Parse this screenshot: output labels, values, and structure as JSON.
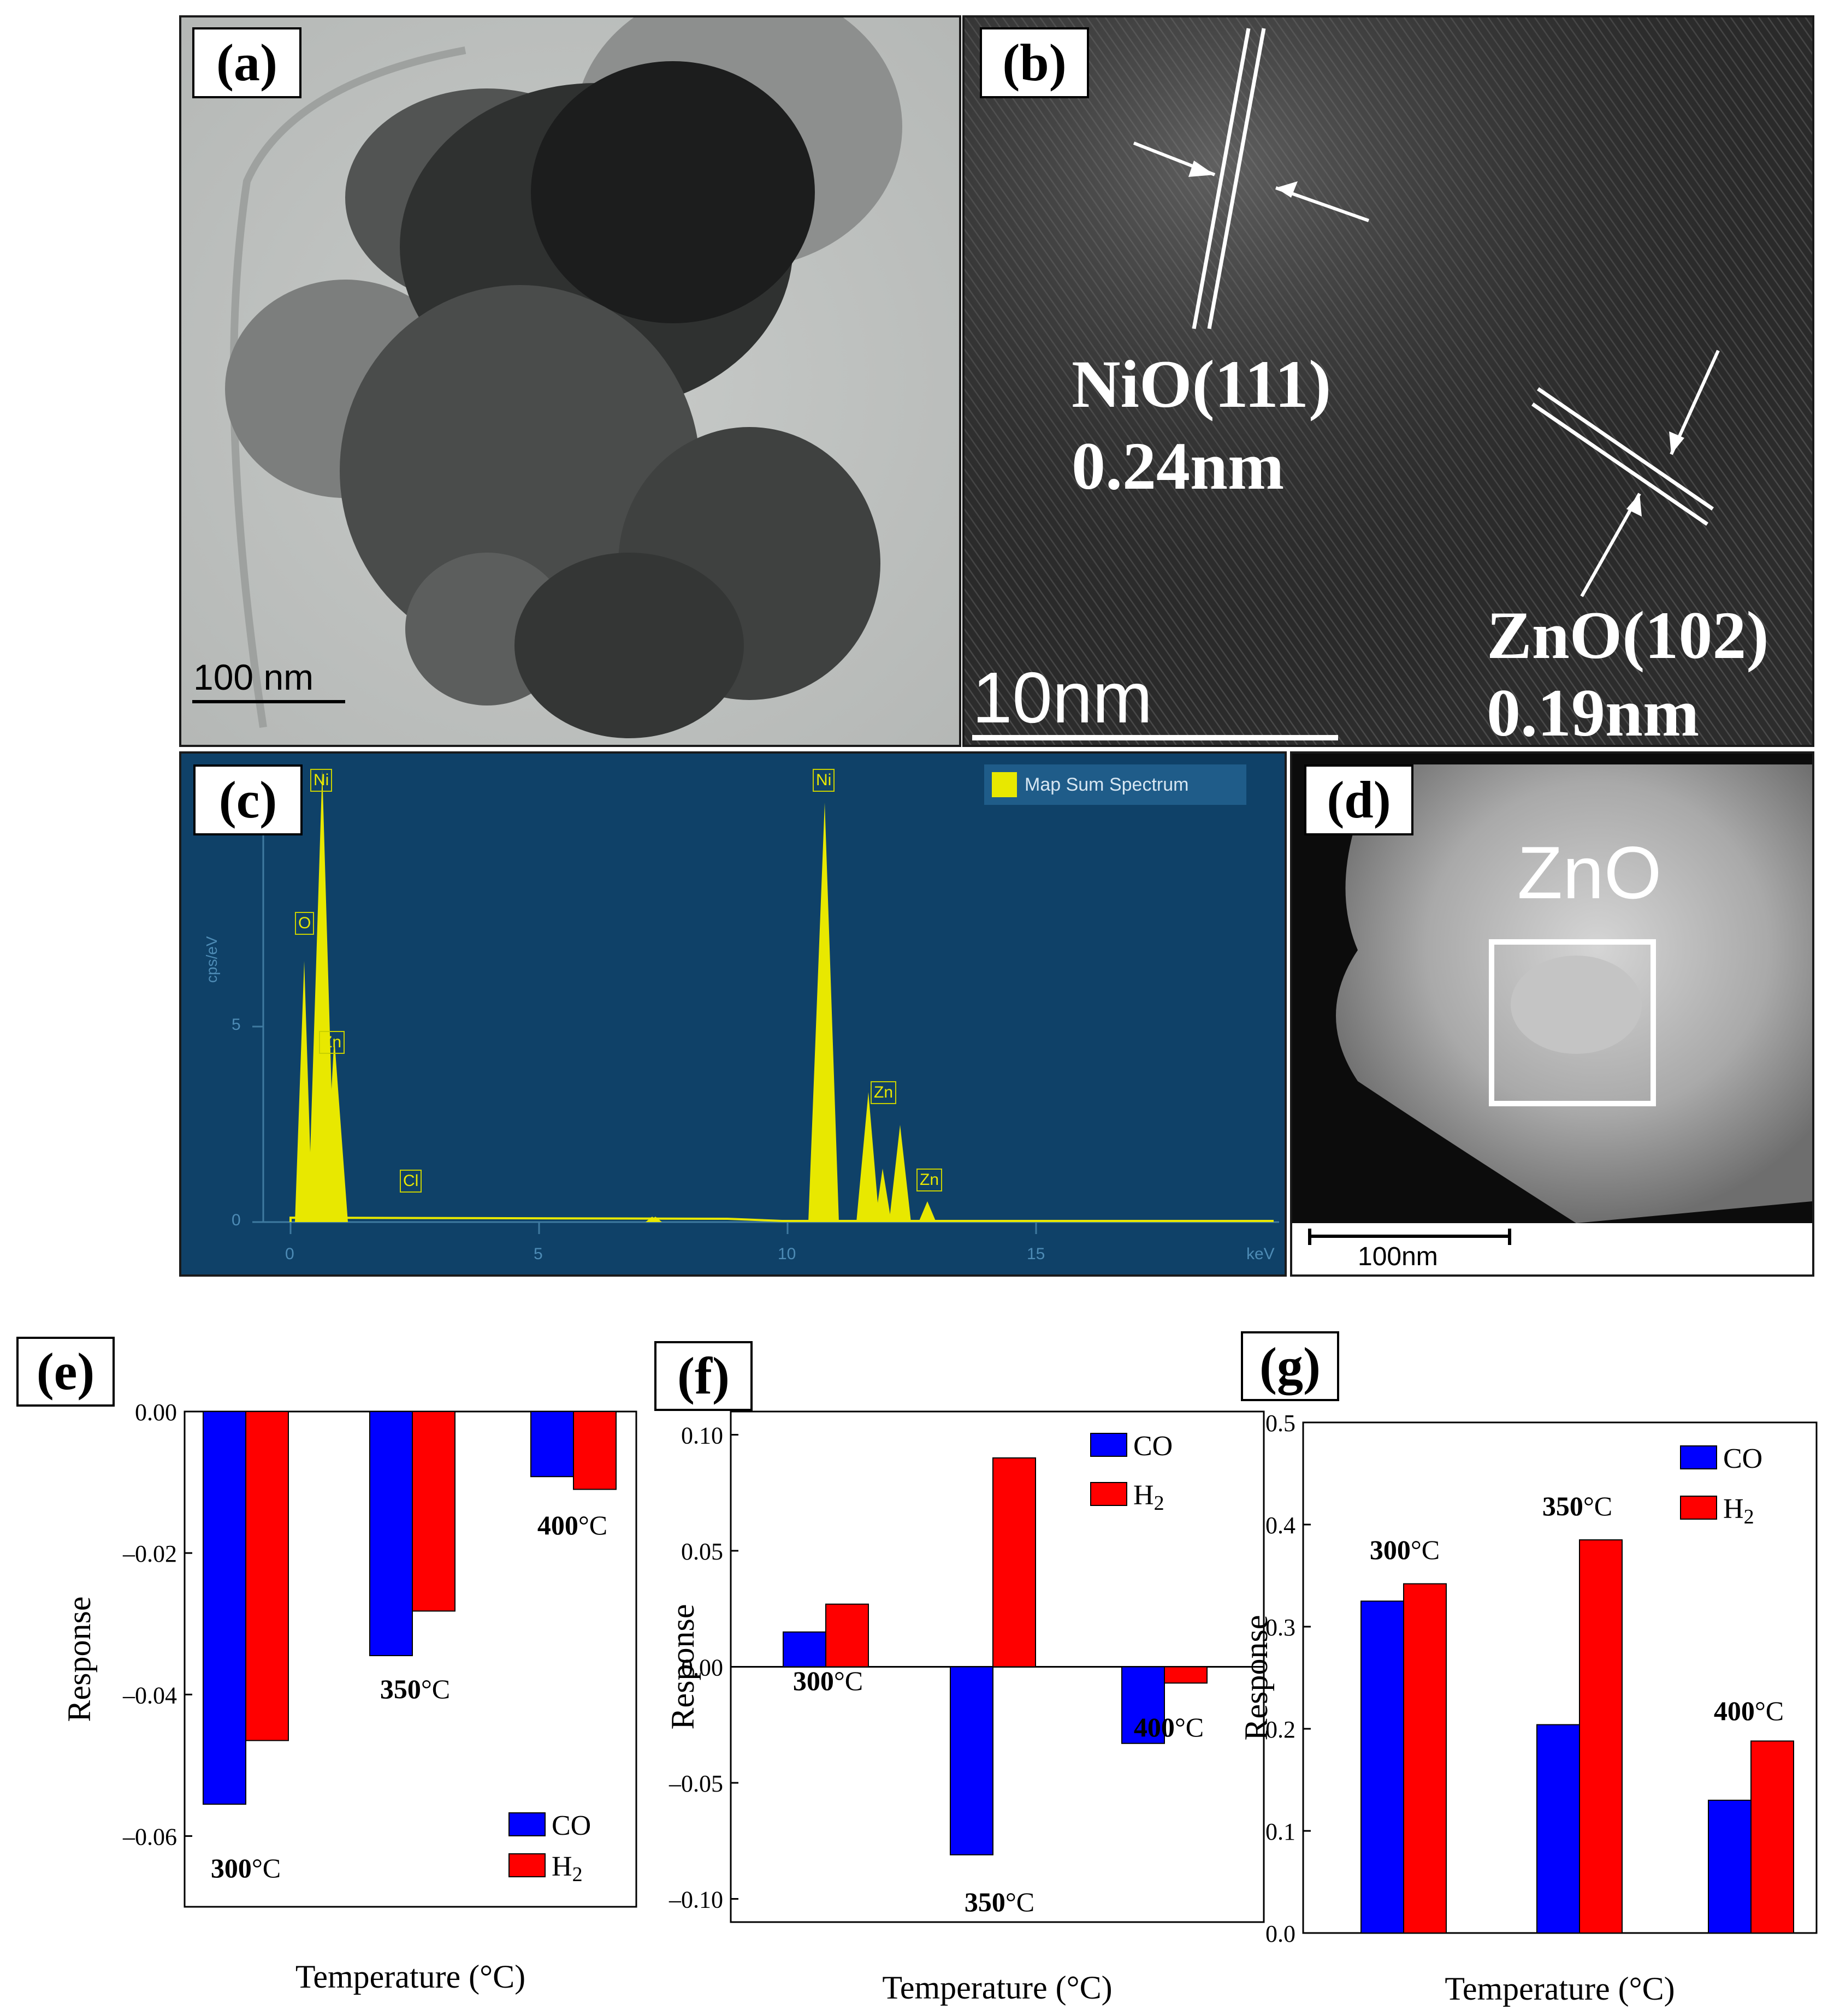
{
  "panels": {
    "a": {
      "label": "(a)",
      "scale_bar": "100 nm"
    },
    "b": {
      "label": "(b)",
      "scale_bar": "10nm",
      "annotations": [
        {
          "line1": "NiO(111)",
          "line2": "0.24nm"
        },
        {
          "line1": "ZnO(102)",
          "line2": "0.19nm"
        }
      ]
    },
    "c": {
      "label": "(c)",
      "legend": "Map Sum Spectrum",
      "y_unit": "cps/eV",
      "x_unit": "keV",
      "y_ticks": [
        "0",
        "5"
      ],
      "x_ticks": [
        "0",
        "5",
        "10",
        "15"
      ],
      "peak_labels": [
        "Ni",
        "O",
        "Zn",
        "Cl",
        "Ni",
        "Zn",
        "Zn"
      ]
    },
    "d": {
      "label": "(d)",
      "region_label": "ZnO",
      "scale_bar": "100nm"
    },
    "e": {
      "label": "(e)"
    },
    "f": {
      "label": "(f)"
    },
    "g": {
      "label": "(g)"
    }
  },
  "chart_data": [
    {
      "panel": "(e)",
      "type": "bar",
      "categories": [
        "300°C",
        "350°C",
        "400°C"
      ],
      "series": [
        {
          "name": "CO",
          "values": [
            -0.0555,
            -0.0345,
            -0.0092
          ],
          "color": "#0000ff"
        },
        {
          "name": "H2",
          "values": [
            -0.0465,
            -0.0282,
            -0.011
          ],
          "color": "#ff0000"
        }
      ],
      "xlabel": "Temperature (°C)",
      "ylabel": "Response",
      "ylim": [
        -0.07,
        0.0
      ],
      "yticks": [
        0.0,
        -0.02,
        -0.04,
        -0.06
      ],
      "ytick_labels": [
        "0.00",
        "–0.02",
        "–0.04",
        "–0.06"
      ],
      "legend_position": "bottom-right"
    },
    {
      "panel": "(f)",
      "type": "bar",
      "categories": [
        "300°C",
        "350°C",
        "400°C"
      ],
      "series": [
        {
          "name": "CO",
          "values": [
            0.015,
            -0.081,
            -0.033
          ],
          "color": "#0000ff"
        },
        {
          "name": "H2",
          "values": [
            0.027,
            0.09,
            -0.007
          ],
          "color": "#ff0000"
        }
      ],
      "xlabel": "Temperature (°C)",
      "ylabel": "Response",
      "ylim": [
        -0.11,
        0.11
      ],
      "yticks": [
        0.1,
        0.05,
        0.0,
        -0.05,
        -0.1
      ],
      "ytick_labels": [
        "0.10",
        "0.05",
        "0.00",
        "–0.05",
        "–0.10"
      ],
      "legend_position": "top-right"
    },
    {
      "panel": "(g)",
      "type": "bar",
      "categories": [
        "300°C",
        "350°C",
        "400°C"
      ],
      "series": [
        {
          "name": "CO",
          "values": [
            0.325,
            0.204,
            0.13
          ],
          "color": "#0000ff"
        },
        {
          "name": "H2",
          "values": [
            0.342,
            0.385,
            0.188
          ],
          "color": "#ff0000"
        }
      ],
      "xlabel": "Temperature (°C)",
      "ylabel": "Response",
      "ylim": [
        0.0,
        0.5
      ],
      "yticks": [
        0.0,
        0.1,
        0.2,
        0.3,
        0.4,
        0.5
      ],
      "ytick_labels": [
        "0.0",
        "0.1",
        "0.2",
        "0.3",
        "0.4",
        "0.5"
      ],
      "legend_position": "top-right"
    }
  ]
}
